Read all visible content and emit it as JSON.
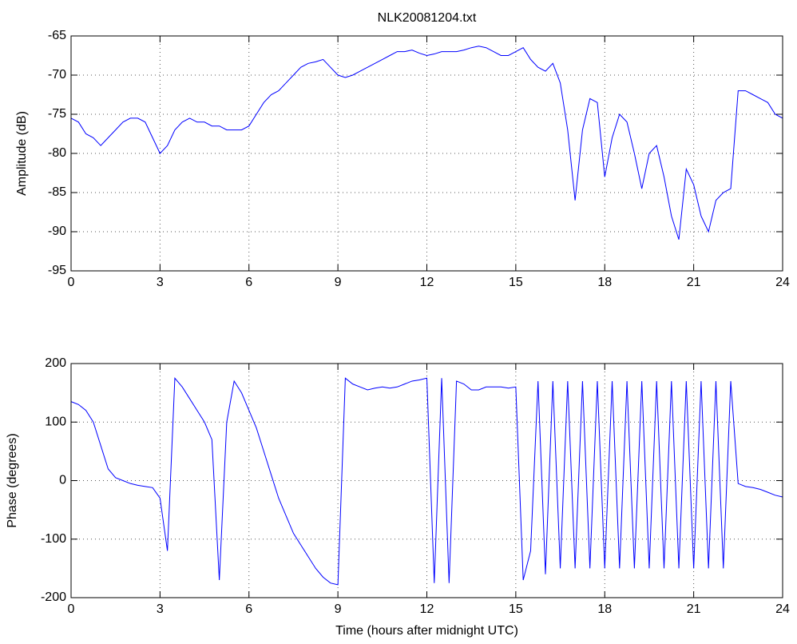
{
  "chart_data": [
    {
      "type": "line",
      "title": "NLK20081204.txt",
      "ylabel": "Amplitude (dB)",
      "x": [
        0,
        0.25,
        0.5,
        0.75,
        1,
        1.25,
        1.5,
        1.75,
        2,
        2.25,
        2.5,
        2.75,
        3,
        3.25,
        3.5,
        3.75,
        4,
        4.25,
        4.5,
        4.75,
        5,
        5.25,
        5.5,
        5.75,
        6,
        6.25,
        6.5,
        6.75,
        7,
        7.25,
        7.5,
        7.75,
        8,
        8.25,
        8.5,
        8.75,
        9,
        9.25,
        9.5,
        9.75,
        10,
        10.25,
        10.5,
        10.75,
        11,
        11.25,
        11.5,
        11.75,
        12,
        12.25,
        12.5,
        12.75,
        13,
        13.25,
        13.5,
        13.75,
        14,
        14.25,
        14.5,
        14.75,
        15,
        15.25,
        15.5,
        15.75,
        16,
        16.25,
        16.5,
        16.75,
        17,
        17.25,
        17.5,
        17.75,
        18,
        18.25,
        18.5,
        18.75,
        19,
        19.25,
        19.5,
        19.75,
        20,
        20.25,
        20.5,
        20.75,
        21,
        21.25,
        21.5,
        21.75,
        22,
        22.25,
        22.5,
        22.75,
        23,
        23.25,
        23.5,
        23.75,
        24
      ],
      "values": [
        -75.5,
        -76,
        -77.5,
        -78,
        -79,
        -78,
        -77,
        -76,
        -75.5,
        -75.5,
        -76,
        -78,
        -80,
        -79,
        -77,
        -76,
        -75.5,
        -76,
        -76,
        -76.5,
        -76.5,
        -77,
        -77,
        -77,
        -76.5,
        -75,
        -73.5,
        -72.5,
        -72,
        -71,
        -70,
        -69,
        -68.5,
        -68.3,
        -68,
        -69,
        -70,
        -70.3,
        -70,
        -69.5,
        -69,
        -68.5,
        -68,
        -67.5,
        -67,
        -67,
        -66.8,
        -67.2,
        -67.5,
        -67.3,
        -67,
        -67,
        -67,
        -66.8,
        -66.5,
        -66.3,
        -66.5,
        -67,
        -67.5,
        -67.5,
        -67,
        -66.5,
        -68,
        -69,
        -69.5,
        -68.5,
        -71,
        -77,
        -86,
        -77,
        -73,
        -73.5,
        -83,
        -78,
        -75,
        -76,
        -80,
        -84.5,
        -80,
        -79,
        -83,
        -88,
        -91,
        -82,
        -84,
        -88,
        -90,
        -86,
        -85,
        -84.5,
        -72,
        -72,
        -72.5,
        -73,
        -73.5,
        -75,
        -75.5
      ],
      "color": "#0000ff",
      "xlim": [
        0,
        24
      ],
      "xticks": [
        0,
        3,
        6,
        9,
        12,
        15,
        18,
        21,
        24
      ],
      "ylim": [
        -95,
        -65
      ],
      "yticks": [
        -95,
        -90,
        -85,
        -80,
        -75,
        -70,
        -65
      ],
      "grid": true
    },
    {
      "type": "line",
      "xlabel": "Time (hours after midnight UTC)",
      "ylabel": "Phase (degrees)",
      "x": [
        0,
        0.25,
        0.5,
        0.75,
        1,
        1.25,
        1.5,
        1.75,
        2,
        2.25,
        2.5,
        2.75,
        3,
        3.25,
        3.5,
        3.75,
        4,
        4.25,
        4.5,
        4.75,
        5,
        5.25,
        5.5,
        5.75,
        6,
        6.25,
        6.5,
        6.75,
        7,
        7.25,
        7.5,
        7.75,
        8,
        8.25,
        8.5,
        8.75,
        9,
        9.25,
        9.5,
        9.75,
        10,
        10.25,
        10.5,
        10.75,
        11,
        11.25,
        11.5,
        11.75,
        12,
        12.25,
        12.5,
        12.75,
        13,
        13.25,
        13.5,
        13.75,
        14,
        14.25,
        14.5,
        14.75,
        15,
        15.25,
        15.5,
        15.75,
        16,
        16.25,
        16.5,
        16.75,
        17,
        17.25,
        17.5,
        17.75,
        18,
        18.25,
        18.5,
        18.75,
        19,
        19.25,
        19.5,
        19.75,
        20,
        20.25,
        20.5,
        20.75,
        21,
        21.25,
        21.5,
        21.75,
        22,
        22.25,
        22.5,
        22.75,
        23,
        23.25,
        23.5,
        23.75,
        24
      ],
      "values": [
        135,
        130,
        120,
        100,
        60,
        20,
        5,
        0,
        -5,
        -8,
        -10,
        -12,
        -30,
        -120,
        175,
        160,
        140,
        120,
        100,
        70,
        -170,
        100,
        170,
        150,
        120,
        90,
        50,
        10,
        -30,
        -60,
        -90,
        -110,
        -130,
        -150,
        -165,
        -175,
        -178,
        175,
        165,
        160,
        155,
        158,
        160,
        158,
        160,
        165,
        170,
        172,
        175,
        -175,
        175,
        -175,
        170,
        165,
        155,
        155,
        160,
        160,
        160,
        158,
        160,
        -170,
        -120,
        170,
        -160,
        170,
        -150,
        170,
        -150,
        170,
        -150,
        170,
        -150,
        170,
        -150,
        170,
        -150,
        170,
        -150,
        170,
        -150,
        170,
        -150,
        170,
        -150,
        170,
        -150,
        170,
        -150,
        170,
        -5,
        -10,
        -12,
        -15,
        -20,
        -25,
        -28
      ],
      "color": "#0000ff",
      "xlim": [
        0,
        24
      ],
      "xticks": [
        0,
        3,
        6,
        9,
        12,
        15,
        18,
        21,
        24
      ],
      "ylim": [
        -200,
        200
      ],
      "yticks": [
        -200,
        -100,
        0,
        100,
        200
      ],
      "grid": true
    }
  ]
}
